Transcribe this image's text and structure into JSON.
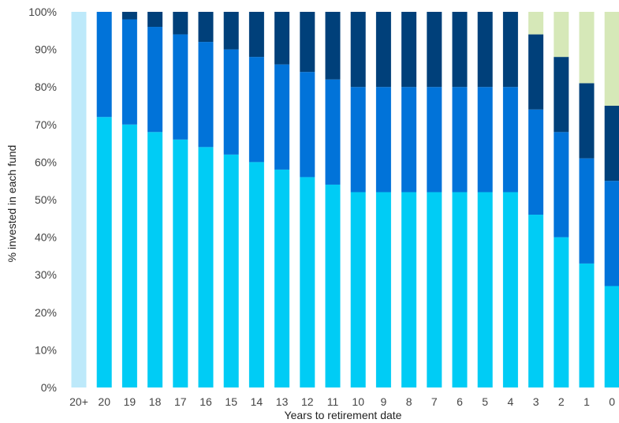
{
  "chart_data": {
    "type": "bar",
    "stacked": true,
    "xlabel": "Years to retirement date",
    "ylabel": "% invested in each fund",
    "ylim": [
      0,
      100
    ],
    "grid": false,
    "legend": "none",
    "y_tick_labels": [
      "0%",
      "10%",
      "20%",
      "30%",
      "40%",
      "50%",
      "60%",
      "70%",
      "80%",
      "90%",
      "100%"
    ],
    "categories": [
      "20+",
      "20",
      "19",
      "18",
      "17",
      "16",
      "15",
      "14",
      "13",
      "12",
      "11",
      "10",
      "9",
      "8",
      "7",
      "6",
      "5",
      "4",
      "3",
      "2",
      "1",
      "0"
    ],
    "series": [
      {
        "color": "#bde9fa",
        "values": [
          100,
          0,
          0,
          0,
          0,
          0,
          0,
          0,
          0,
          0,
          0,
          0,
          0,
          0,
          0,
          0,
          0,
          0,
          0,
          0,
          0,
          0
        ]
      },
      {
        "color": "#00ccf5",
        "values": [
          0,
          72,
          70,
          68,
          66,
          64,
          62,
          60,
          58,
          56,
          54,
          52,
          52,
          52,
          52,
          52,
          52,
          52,
          46,
          40,
          33,
          27
        ]
      },
      {
        "color": "#0173d9",
        "values": [
          0,
          28,
          28,
          28,
          28,
          28,
          28,
          28,
          28,
          28,
          28,
          28,
          28,
          28,
          28,
          28,
          28,
          28,
          28,
          28,
          28,
          28
        ]
      },
      {
        "color": "#00407a",
        "values": [
          0,
          0,
          2,
          4,
          6,
          8,
          10,
          12,
          14,
          16,
          18,
          20,
          20,
          20,
          20,
          20,
          20,
          20,
          20,
          20,
          20,
          20
        ]
      },
      {
        "color": "#d6e8b8",
        "values": [
          0,
          0,
          0,
          0,
          0,
          0,
          0,
          0,
          0,
          0,
          0,
          0,
          0,
          0,
          0,
          0,
          0,
          0,
          6,
          12,
          19,
          25
        ]
      }
    ]
  }
}
